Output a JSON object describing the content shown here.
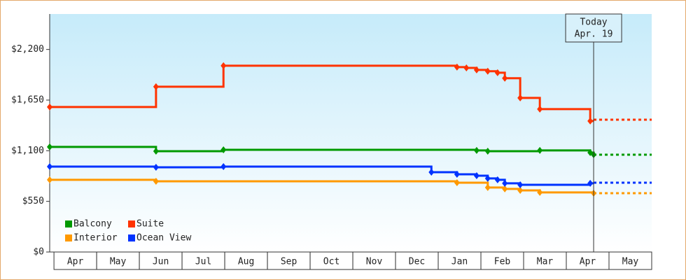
{
  "chart_data": {
    "type": "step",
    "xlim": [
      -0.1,
      14
    ],
    "xticks": [
      {
        "value": 0.5,
        "label": "Apr"
      },
      {
        "value": 1.5,
        "label": "May"
      },
      {
        "value": 2.5,
        "label": "Jun"
      },
      {
        "value": 3.5,
        "label": "Jul"
      },
      {
        "value": 4.5,
        "label": "Aug"
      },
      {
        "value": 5.5,
        "label": "Sep"
      },
      {
        "value": 6.5,
        "label": "Oct"
      },
      {
        "value": 7.5,
        "label": "Nov"
      },
      {
        "value": 8.5,
        "label": "Dec"
      },
      {
        "value": 9.5,
        "label": "Jan"
      },
      {
        "value": 10.5,
        "label": "Feb"
      },
      {
        "value": 11.5,
        "label": "Mar"
      },
      {
        "value": 12.5,
        "label": "Apr"
      },
      {
        "value": 13.5,
        "label": "May"
      }
    ],
    "ylim": [
      0,
      2585
    ],
    "yticks": [
      {
        "value": 0,
        "label": "$0"
      },
      {
        "value": 550,
        "label": "$550"
      },
      {
        "value": 1100,
        "label": "$1,100"
      },
      {
        "value": 1650,
        "label": "$1,650"
      },
      {
        "value": 2200,
        "label": "$2,200"
      }
    ],
    "today": {
      "x": 12.64,
      "label": "Today",
      "date": "Apr. 19"
    },
    "legend": "lower left",
    "series": [
      {
        "name": "Balcony",
        "color": "#009900",
        "x": [
          -0.1,
          2.39,
          3.97,
          9.9,
          10.16,
          11.38,
          12.56,
          12.64
        ],
        "values": [
          1141,
          1095,
          1110,
          1103,
          1095,
          1103,
          1080,
          1057
        ],
        "forecast": 1057
      },
      {
        "name": "Suite",
        "color": "#ff3300",
        "x": [
          -0.1,
          2.39,
          3.97,
          9.44,
          9.66,
          9.9,
          10.16,
          10.39,
          10.56,
          10.92,
          11.38,
          12.56
        ],
        "values": [
          1575,
          1795,
          2023,
          2008,
          2000,
          1978,
          1963,
          1947,
          1887,
          1674,
          1552,
          1423
        ],
        "forecast": 1437
      },
      {
        "name": "Interior",
        "color": "#ff9900",
        "x": [
          -0.1,
          2.39,
          9.44,
          10.16,
          10.56,
          10.92,
          11.38,
          12.64
        ],
        "values": [
          784,
          768,
          753,
          700,
          685,
          669,
          647,
          639
        ],
        "forecast": 639
      },
      {
        "name": "Ocean View",
        "color": "#0033ff",
        "x": [
          -0.1,
          2.39,
          3.97,
          8.84,
          9.44,
          9.9,
          10.16,
          10.39,
          10.56,
          10.92,
          12.56
        ],
        "values": [
          928,
          920,
          928,
          867,
          844,
          829,
          799,
          784,
          746,
          730,
          746
        ],
        "forecast": 753
      }
    ]
  }
}
